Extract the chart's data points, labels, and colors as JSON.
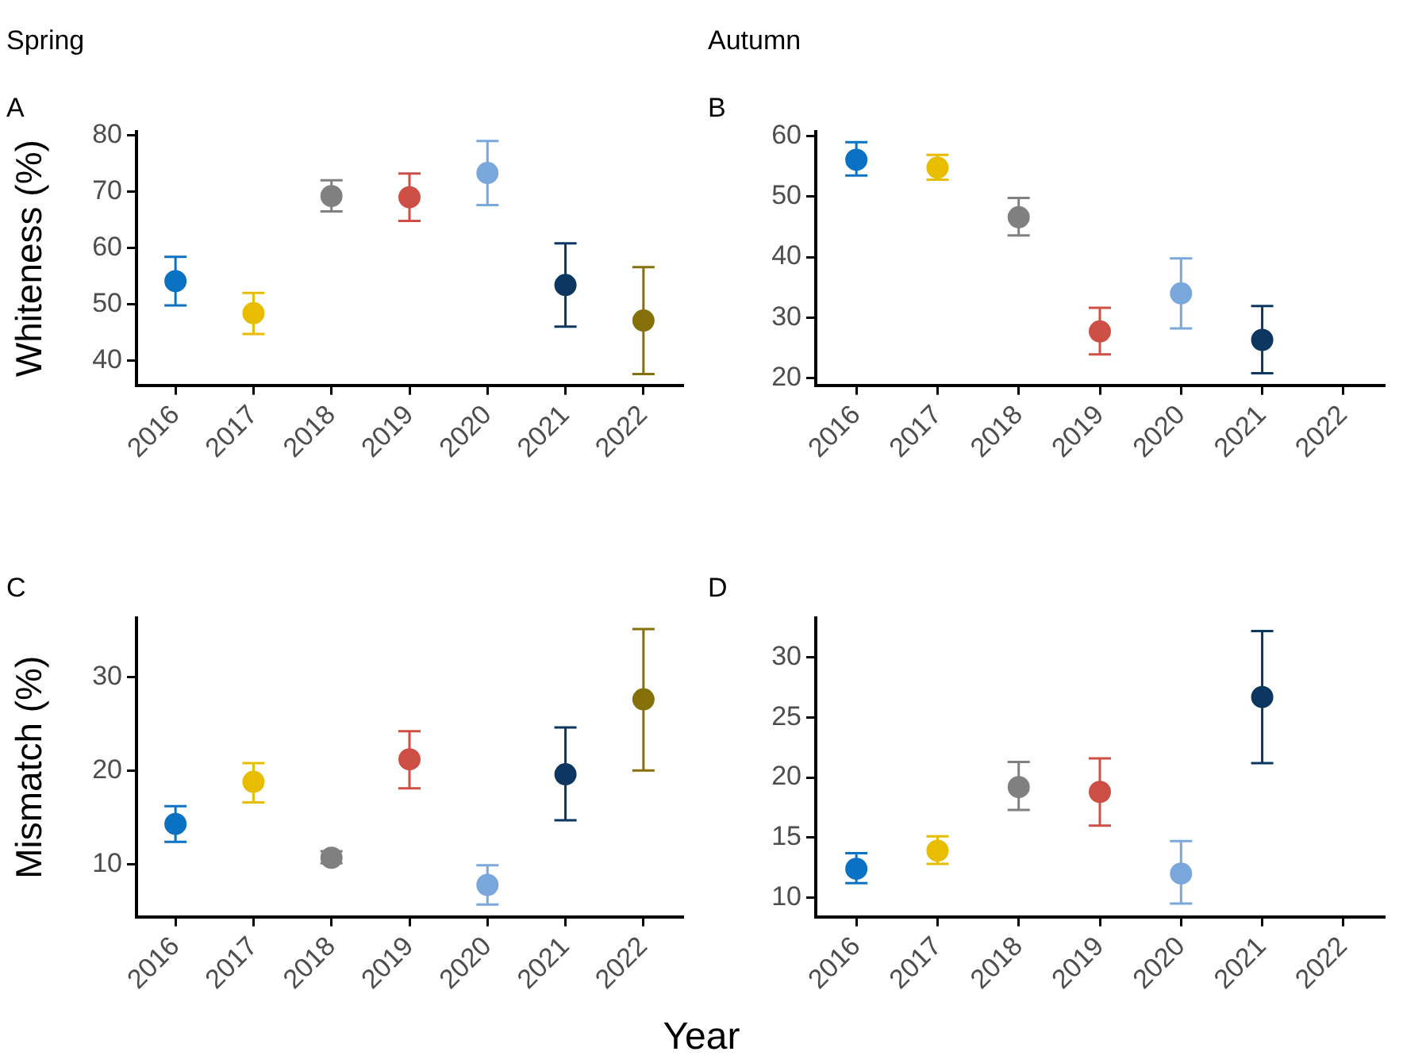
{
  "chart_data": [
    {
      "type": "scatter",
      "title": "Spring",
      "subtitle": "A",
      "ylabel": "Whiteness (%)",
      "categories": [
        "2016",
        "2017",
        "2018",
        "2019",
        "2020",
        "2021",
        "2022"
      ],
      "values": [
        54.1,
        48.4,
        69.2,
        69.0,
        73.3,
        53.4,
        47.1
      ],
      "errors": [
        [
          49.8,
          58.4
        ],
        [
          44.7,
          52.0
        ],
        [
          66.5,
          72.0
        ],
        [
          64.8,
          73.2
        ],
        [
          67.6,
          79.0
        ],
        [
          46.0,
          60.8
        ],
        [
          37.6,
          56.6
        ]
      ],
      "colors": [
        "#0a72c2",
        "#e8bd00",
        "#808080",
        "#cd4f45",
        "#7aa7dc",
        "#0c3760",
        "#85700a"
      ],
      "ylim": [
        35.6,
        80.7
      ],
      "yticks": [
        40,
        50,
        60,
        70,
        80
      ],
      "grid": false,
      "legend": false,
      "marker": "circle"
    },
    {
      "type": "scatter",
      "title": "Autumn",
      "subtitle": "B",
      "categories": [
        "2016",
        "2017",
        "2018",
        "2019",
        "2020",
        "2021",
        "2022"
      ],
      "values": [
        56.1,
        54.8,
        46.6,
        27.7,
        34.0,
        26.3,
        null
      ],
      "errors": [
        [
          53.5,
          59.0
        ],
        [
          52.8,
          56.9
        ],
        [
          43.6,
          49.8
        ],
        [
          23.9,
          31.6
        ],
        [
          28.2,
          39.8
        ],
        [
          20.8,
          31.9
        ],
        null
      ],
      "colors": [
        "#0a72c2",
        "#e8bd00",
        "#808080",
        "#cd4f45",
        "#7aa7dc",
        "#0c3760",
        "#85700a"
      ],
      "ylim": [
        18.8,
        60.8
      ],
      "yticks": [
        20,
        30,
        40,
        50,
        60
      ],
      "grid": false,
      "legend": false,
      "marker": "circle"
    },
    {
      "type": "scatter",
      "title": "C",
      "ylabel": "Mismatch (%)",
      "xlabel": "Year",
      "categories": [
        "2016",
        "2017",
        "2018",
        "2019",
        "2020",
        "2021",
        "2022"
      ],
      "values": [
        14.3,
        18.8,
        10.7,
        21.2,
        7.8,
        19.6,
        27.6
      ],
      "errors": [
        [
          12.4,
          16.2
        ],
        [
          16.6,
          20.8
        ],
        [
          10.1,
          11.4
        ],
        [
          18.1,
          24.2
        ],
        [
          5.7,
          9.9
        ],
        [
          14.7,
          24.6
        ],
        [
          20.0,
          35.1
        ]
      ],
      "colors": [
        "#0a72c2",
        "#e8bd00",
        "#808080",
        "#cd4f45",
        "#7aa7dc",
        "#0c3760",
        "#85700a"
      ],
      "ylim": [
        4.4,
        36.3
      ],
      "yticks": [
        10,
        20,
        30
      ],
      "grid": false,
      "legend": false,
      "marker": "circle"
    },
    {
      "type": "scatter",
      "title": "D",
      "categories": [
        "2016",
        "2017",
        "2018",
        "2019",
        "2020",
        "2021",
        "2022"
      ],
      "values": [
        12.4,
        13.9,
        19.2,
        18.8,
        12.0,
        26.7,
        null
      ],
      "errors": [
        [
          11.2,
          13.7
        ],
        [
          12.8,
          15.1
        ],
        [
          17.3,
          21.3
        ],
        [
          16.0,
          21.6
        ],
        [
          9.5,
          14.7
        ],
        [
          21.2,
          32.2
        ],
        null
      ],
      "colors": [
        "#0a72c2",
        "#e8bd00",
        "#808080",
        "#cd4f45",
        "#7aa7dc",
        "#0c3760",
        "#85700a"
      ],
      "ylim": [
        8.4,
        33.3
      ],
      "yticks": [
        10,
        15,
        20,
        25,
        30
      ],
      "grid": false,
      "legend": false,
      "marker": "circle"
    }
  ]
}
